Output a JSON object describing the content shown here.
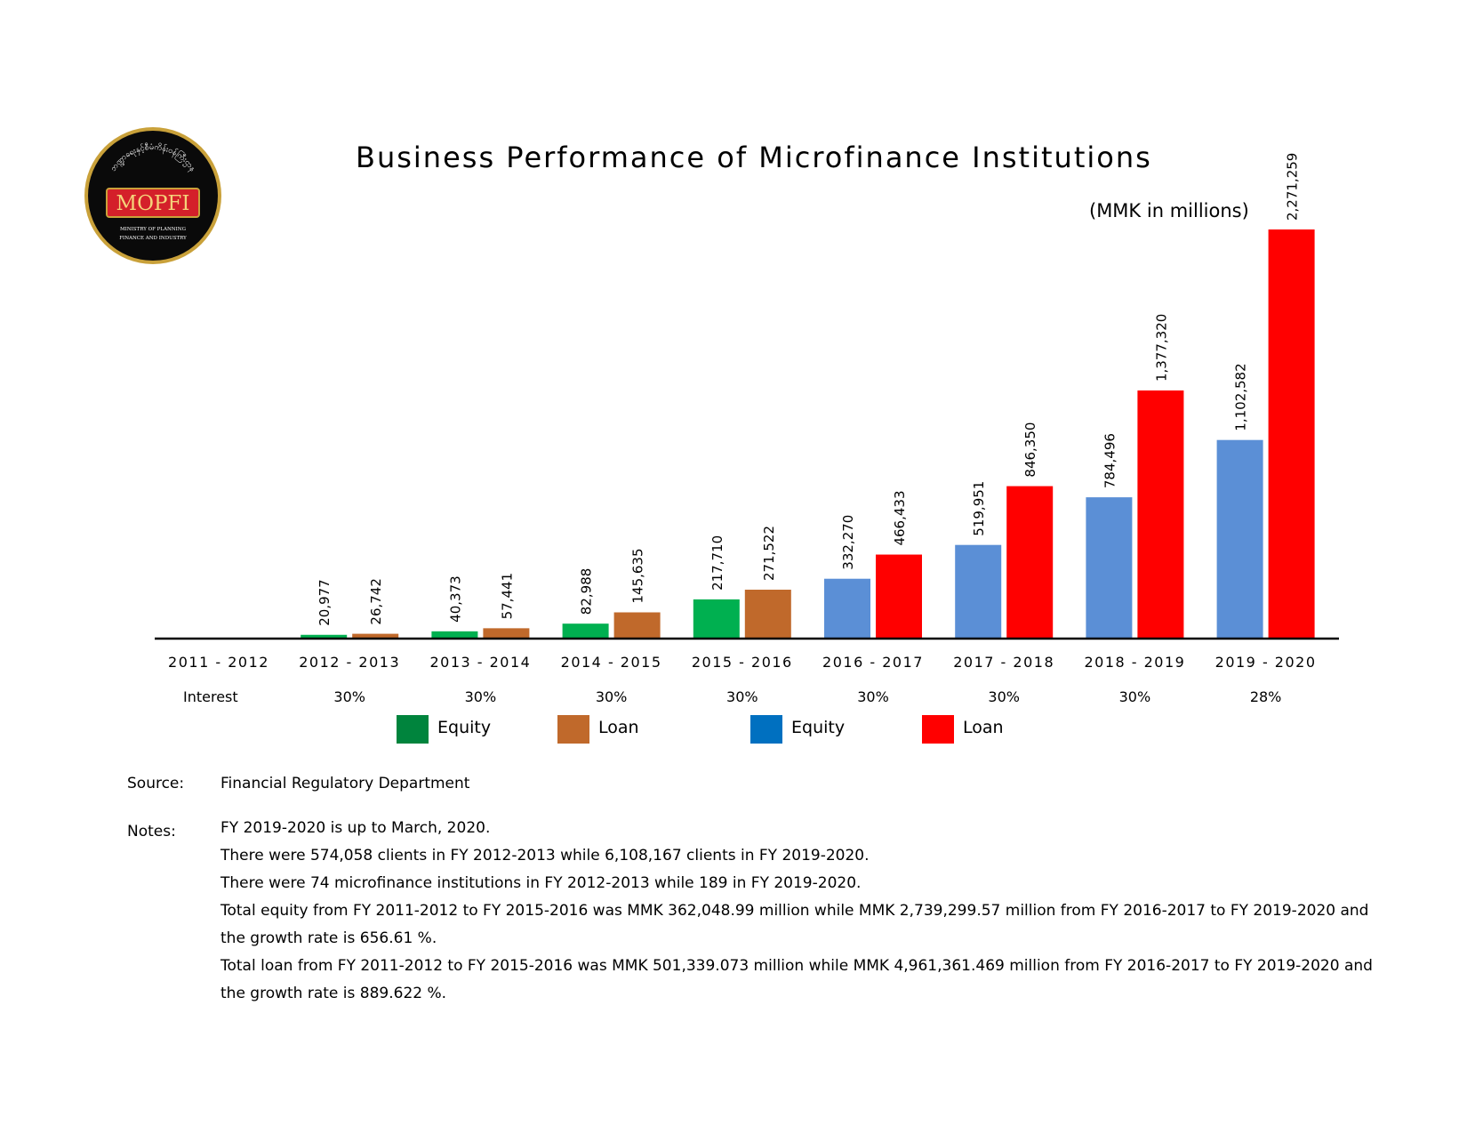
{
  "logo": {
    "text_top": "ဘဏ္ဍာရေးနှင့်စီမံကိန်းဝန်ကြီးဌာန",
    "brand": "MOPFI",
    "ministry_line1": "MINISTRY OF PLANNING",
    "ministry_line2": "FINANCE AND INDUSTRY"
  },
  "colors": {
    "equity_green": "#00b050",
    "loan_brown": "#c0692b",
    "equity_blue": "#5b8fd6",
    "loan_red": "#ff0000",
    "legend_equity_green": "#00843d",
    "legend_equity_blue": "#0070c0"
  },
  "chart_data": {
    "type": "bar",
    "title": "Business Performance of Microfinance Institutions",
    "units": "(MMK in millions)",
    "categories": [
      "2011 - 2012",
      "2012 - 2013",
      "2013 - 2014",
      "2014 - 2015",
      "2015 - 2016",
      "2016 - 2017",
      "2017 - 2018",
      "2018 - 2019",
      "2019 - 2020"
    ],
    "interest_label": "Interest",
    "interest": [
      "",
      "30%",
      "30%",
      "30%",
      "30%",
      "30%",
      "30%",
      "30%",
      "28%"
    ],
    "series": [
      {
        "name": "Equity",
        "values": [
          null,
          20977,
          40373,
          82988,
          217710,
          332270,
          519951,
          784496,
          1102582
        ],
        "labels": [
          "",
          "20,977",
          "40,373",
          "82,988",
          "217,710",
          "332,270",
          "519,951",
          "784,496",
          "1,102,582"
        ]
      },
      {
        "name": "Loan",
        "values": [
          null,
          26742,
          57441,
          145635,
          271522,
          466433,
          846350,
          1377320,
          2271259
        ],
        "labels": [
          "",
          "26,742",
          "57,441",
          "145,635",
          "271,522",
          "466,433",
          "846,350",
          "1,377,320",
          "2,271,259"
        ]
      }
    ],
    "ylim": [
      0,
      2271259
    ],
    "legend": [
      {
        "label": "Equity",
        "color": "#00843d"
      },
      {
        "label": "Loan",
        "color": "#c0692b"
      },
      {
        "label": "Equity",
        "color": "#0070c0"
      },
      {
        "label": "Loan",
        "color": "#ff0000"
      }
    ]
  },
  "source_label": "Source:",
  "source_text": "Financial Regulatory Department",
  "notes_label": "Notes:",
  "notes": [
    "FY 2019-2020 is up to March, 2020.",
    "There were 574,058 clients in FY 2012-2013 while 6,108,167 clients in FY 2019-2020.",
    "There were 74 microfinance institutions in FY 2012-2013 while 189 in FY 2019-2020.",
    "Total equity from FY 2011-2012 to FY 2015-2016 was MMK 362,048.99 million while MMK 2,739,299.57 million from FY 2016-2017 to FY 2019-2020 and the growth rate is 656.61 %.",
    "Total loan from FY 2011-2012 to FY 2015-2016 was MMK 501,339.073 million while MMK 4,961,361.469 million from FY 2016-2017 to FY 2019-2020 and the growth rate is 889.622 %."
  ]
}
